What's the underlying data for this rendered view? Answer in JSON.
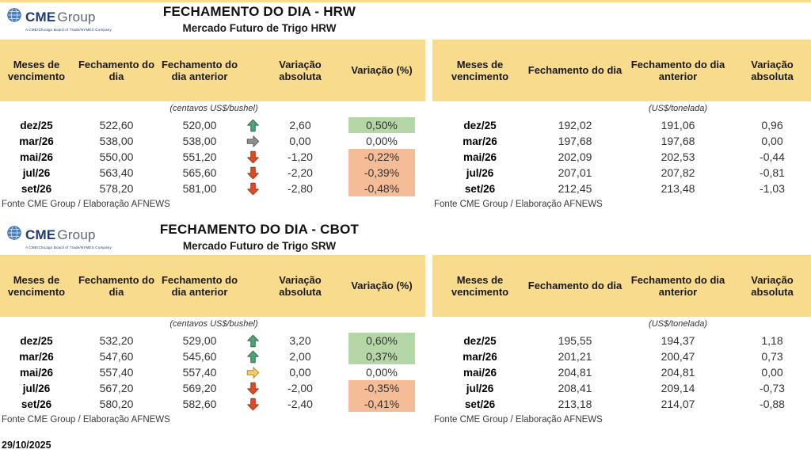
{
  "page": {
    "date": "29/10/2025"
  },
  "colors": {
    "header_band": "#f8db8d",
    "highlight_up": "#b5d6a7",
    "highlight_down": "#f5bd97",
    "logo_navy": "#1e3a6e",
    "logo_gray": "#5b6770",
    "arrows": {
      "green": {
        "fill": "#4fa379",
        "stroke": "#2f6b4f"
      },
      "gray": {
        "fill": "#8f8f8f",
        "stroke": "#5f5f5f"
      },
      "red": {
        "fill": "#d94e26",
        "stroke": "#a33415"
      },
      "gold": {
        "fill": "#f2cb72",
        "stroke": "#b98a2a"
      }
    }
  },
  "logo": {
    "cme": "CME",
    "group": "Group",
    "tagline": "A CME/Chicago Board of Trade/NYMEX Company"
  },
  "sections": [
    {
      "title": "FECHAMENTO DO DIA - HRW",
      "subtitle": "Mercado Futuro de Trigo HRW",
      "left": {
        "headers": [
          "Meses de vencimento",
          "Fechamento do dia",
          "Fechamento do dia anterior",
          "Variação absoluta",
          "Variação (%)"
        ],
        "unit": "(centavos US$/bushel)",
        "source": "Fonte CME Group / Elaboração AFNEWS",
        "rows": [
          {
            "month": "dez/25",
            "close": "522,60",
            "prev": "520,00",
            "arrow": "up",
            "arrow_color": "green",
            "abs": "2,60",
            "pct": "0,50%"
          },
          {
            "month": "mar/26",
            "close": "538,00",
            "prev": "538,00",
            "arrow": "right",
            "arrow_color": "gray",
            "abs": "0,00",
            "pct": "0,00%"
          },
          {
            "month": "mai/26",
            "close": "550,00",
            "prev": "551,20",
            "arrow": "down",
            "arrow_color": "red",
            "abs": "-1,20",
            "pct": "-0,22%"
          },
          {
            "month": "jul/26",
            "close": "563,40",
            "prev": "565,60",
            "arrow": "down",
            "arrow_color": "red",
            "abs": "-2,20",
            "pct": "-0,39%"
          },
          {
            "month": "set/26",
            "close": "578,20",
            "prev": "581,00",
            "arrow": "down",
            "arrow_color": "red",
            "abs": "-2,80",
            "pct": "-0,48%"
          }
        ]
      },
      "right": {
        "headers": [
          "Meses de vencimento",
          "Fechamento do dia",
          "Fechamento do dia anterior",
          "Variação absoluta"
        ],
        "unit": "(US$/tonelada)",
        "source": "Fonte CME Group / Elaboração AFNEWS",
        "rows": [
          {
            "month": "dez/25",
            "close": "192,02",
            "prev": "191,06",
            "abs": "0,96"
          },
          {
            "month": "mar/26",
            "close": "197,68",
            "prev": "197,68",
            "abs": "0,00"
          },
          {
            "month": "mai/26",
            "close": "202,09",
            "prev": "202,53",
            "abs": "-0,44"
          },
          {
            "month": "jul/26",
            "close": "207,01",
            "prev": "207,82",
            "abs": "-0,81"
          },
          {
            "month": "set/26",
            "close": "212,45",
            "prev": "213,48",
            "abs": "-1,03"
          }
        ]
      }
    },
    {
      "title": "FECHAMENTO DO DIA - CBOT",
      "subtitle": "Mercado Futuro de Trigo SRW",
      "left": {
        "headers": [
          "Meses de vencimento",
          "Fechamento do dia",
          "Fechamento do dia anterior",
          "Variação absoluta",
          "Variação (%)"
        ],
        "unit": "(centavos US$/bushel)",
        "source": "Fonte CME Group / Elaboração AFNEWS",
        "rows": [
          {
            "month": "dez/25",
            "close": "532,20",
            "prev": "529,00",
            "arrow": "up",
            "arrow_color": "green",
            "abs": "3,20",
            "pct": "0,60%"
          },
          {
            "month": "mar/26",
            "close": "547,60",
            "prev": "545,60",
            "arrow": "up",
            "arrow_color": "green",
            "abs": "2,00",
            "pct": "0,37%"
          },
          {
            "month": "mai/26",
            "close": "557,40",
            "prev": "557,40",
            "arrow": "right",
            "arrow_color": "gold",
            "abs": "0,00",
            "pct": "0,00%"
          },
          {
            "month": "jul/26",
            "close": "567,20",
            "prev": "569,20",
            "arrow": "down",
            "arrow_color": "red",
            "abs": "-2,00",
            "pct": "-0,35%"
          },
          {
            "month": "set/26",
            "close": "580,20",
            "prev": "582,60",
            "arrow": "down",
            "arrow_color": "red",
            "abs": "-2,40",
            "pct": "-0,41%"
          }
        ]
      },
      "right": {
        "headers": [
          "Meses de vencimento",
          "Fechamento do dia",
          "Fechamento do dia anterior",
          "Variação absoluta"
        ],
        "unit": "(US$/tonelada)",
        "source": "Fonte CME Group / Elaboração AFNEWS",
        "rows": [
          {
            "month": "dez/25",
            "close": "195,55",
            "prev": "194,37",
            "abs": "1,18"
          },
          {
            "month": "mar/26",
            "close": "201,21",
            "prev": "200,47",
            "abs": "0,73"
          },
          {
            "month": "mai/26",
            "close": "204,81",
            "prev": "204,81",
            "abs": "0,00"
          },
          {
            "month": "jul/26",
            "close": "208,41",
            "prev": "209,14",
            "abs": "-0,73"
          },
          {
            "month": "set/26",
            "close": "213,18",
            "prev": "214,07",
            "abs": "-0,88"
          }
        ]
      }
    }
  ]
}
